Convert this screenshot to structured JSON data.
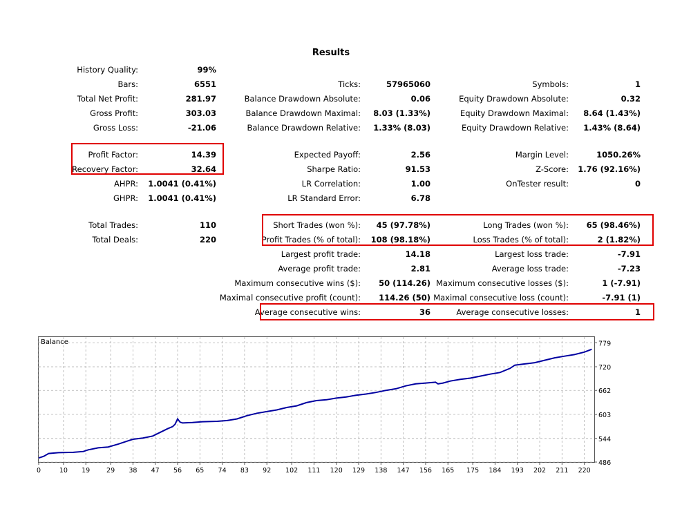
{
  "title": "Results",
  "rows": [
    {
      "top": 93,
      "cols": [
        [
          "History Quality:",
          "99%"
        ],
        null,
        null
      ]
    },
    {
      "top": 114,
      "cols": [
        [
          "Bars:",
          "6551"
        ],
        [
          "Ticks:",
          "57965060"
        ],
        [
          "Symbols:",
          "1"
        ]
      ]
    },
    {
      "top": 135,
      "cols": [
        [
          "Total Net Profit:",
          "281.97"
        ],
        [
          "Balance Drawdown Absolute:",
          "0.06"
        ],
        [
          "Equity Drawdown Absolute:",
          "0.32"
        ]
      ]
    },
    {
      "top": 156,
      "cols": [
        [
          "Gross Profit:",
          "303.03"
        ],
        [
          "Balance Drawdown Maximal:",
          "8.03 (1.33%)"
        ],
        [
          "Equity Drawdown Maximal:",
          "8.64 (1.43%)"
        ]
      ]
    },
    {
      "top": 177,
      "cols": [
        [
          "Gross Loss:",
          "-21.06"
        ],
        [
          "Balance Drawdown Relative:",
          "1.33% (8.03)"
        ],
        [
          "Equity Drawdown Relative:",
          "1.43% (8.64)"
        ]
      ]
    },
    {
      "top": 216,
      "cols": [
        [
          "Profit Factor:",
          "14.39"
        ],
        [
          "Expected Payoff:",
          "2.56"
        ],
        [
          "Margin Level:",
          "1050.26%"
        ]
      ]
    },
    {
      "top": 237,
      "cols": [
        [
          "Recovery Factor:",
          "32.64"
        ],
        [
          "Sharpe Ratio:",
          "91.53"
        ],
        [
          "Z-Score:",
          "1.76 (92.16%)"
        ]
      ]
    },
    {
      "top": 258,
      "cols": [
        [
          "AHPR:",
          "1.0041 (0.41%)"
        ],
        [
          "LR Correlation:",
          "1.00"
        ],
        [
          "OnTester result:",
          "0"
        ]
      ]
    },
    {
      "top": 279,
      "cols": [
        [
          "GHPR:",
          "1.0041 (0.41%)"
        ],
        [
          "LR Standard Error:",
          "6.78"
        ],
        null
      ]
    },
    {
      "top": 318,
      "cols": [
        [
          "Total Trades:",
          "110"
        ],
        [
          "Short Trades (won %):",
          "45 (97.78%)"
        ],
        [
          "Long Trades (won %):",
          "65 (98.46%)"
        ]
      ]
    },
    {
      "top": 339,
      "cols": [
        [
          "Total Deals:",
          "220"
        ],
        [
          "Profit Trades (% of total):",
          "108 (98.18%)"
        ],
        [
          "Loss Trades (% of total):",
          "2 (1.82%)"
        ]
      ]
    },
    {
      "top": 360,
      "cols": [
        null,
        [
          "Largest profit trade:",
          "14.18"
        ],
        [
          "Largest loss trade:",
          "-7.91"
        ]
      ]
    },
    {
      "top": 381,
      "cols": [
        null,
        [
          "Average profit trade:",
          "2.81"
        ],
        [
          "Average loss trade:",
          "-7.23"
        ]
      ]
    },
    {
      "top": 402,
      "cols": [
        null,
        [
          "Maximum consecutive wins ($):",
          "50 (114.26)"
        ],
        [
          "Maximum consecutive losses ($):",
          "1 (-7.91)"
        ]
      ]
    },
    {
      "top": 423,
      "cols": [
        null,
        [
          "Maximal consecutive profit (count):",
          "114.26 (50)"
        ],
        [
          "Maximal consecutive loss (count):",
          "-7.91 (1)"
        ]
      ]
    },
    {
      "top": 444,
      "cols": [
        null,
        [
          "Average consecutive wins:",
          "36"
        ],
        [
          "Average consecutive losses:",
          "1"
        ]
      ]
    }
  ],
  "highlight_color": "#e00000",
  "chart_data": {
    "type": "line",
    "title": "Balance",
    "series_color": "#0000a0",
    "xticks": [
      0,
      10,
      19,
      29,
      38,
      47,
      56,
      65,
      74,
      83,
      92,
      102,
      111,
      120,
      129,
      138,
      147,
      156,
      165,
      175,
      184,
      193,
      202,
      211,
      220
    ],
    "yticks": [
      486,
      544,
      603,
      662,
      720,
      779
    ],
    "xlim": [
      0,
      224
    ],
    "ylim": [
      486,
      793
    ],
    "points": [
      [
        0,
        496
      ],
      [
        2,
        500
      ],
      [
        4,
        507
      ],
      [
        8,
        509
      ],
      [
        14,
        510
      ],
      [
        18,
        512
      ],
      [
        20,
        516
      ],
      [
        24,
        521
      ],
      [
        28,
        523
      ],
      [
        32,
        530
      ],
      [
        36,
        538
      ],
      [
        38,
        542
      ],
      [
        42,
        545
      ],
      [
        46,
        550
      ],
      [
        48,
        556
      ],
      [
        50,
        562
      ],
      [
        52,
        568
      ],
      [
        54,
        573
      ],
      [
        55,
        579
      ],
      [
        56,
        592
      ],
      [
        57,
        584
      ],
      [
        58,
        582
      ],
      [
        62,
        583
      ],
      [
        66,
        585
      ],
      [
        72,
        586
      ],
      [
        76,
        588
      ],
      [
        80,
        592
      ],
      [
        84,
        600
      ],
      [
        88,
        606
      ],
      [
        92,
        610
      ],
      [
        96,
        614
      ],
      [
        100,
        620
      ],
      [
        104,
        624
      ],
      [
        108,
        632
      ],
      [
        112,
        637
      ],
      [
        116,
        639
      ],
      [
        120,
        643
      ],
      [
        124,
        646
      ],
      [
        128,
        650
      ],
      [
        132,
        653
      ],
      [
        136,
        657
      ],
      [
        140,
        662
      ],
      [
        144,
        666
      ],
      [
        148,
        673
      ],
      [
        152,
        678
      ],
      [
        156,
        680
      ],
      [
        160,
        682
      ],
      [
        161,
        678
      ],
      [
        163,
        680
      ],
      [
        166,
        685
      ],
      [
        170,
        689
      ],
      [
        174,
        692
      ],
      [
        178,
        697
      ],
      [
        182,
        702
      ],
      [
        186,
        706
      ],
      [
        190,
        716
      ],
      [
        192,
        724
      ],
      [
        196,
        727
      ],
      [
        200,
        730
      ],
      [
        204,
        736
      ],
      [
        208,
        742
      ],
      [
        212,
        746
      ],
      [
        216,
        750
      ],
      [
        220,
        756
      ],
      [
        223,
        763
      ]
    ]
  }
}
